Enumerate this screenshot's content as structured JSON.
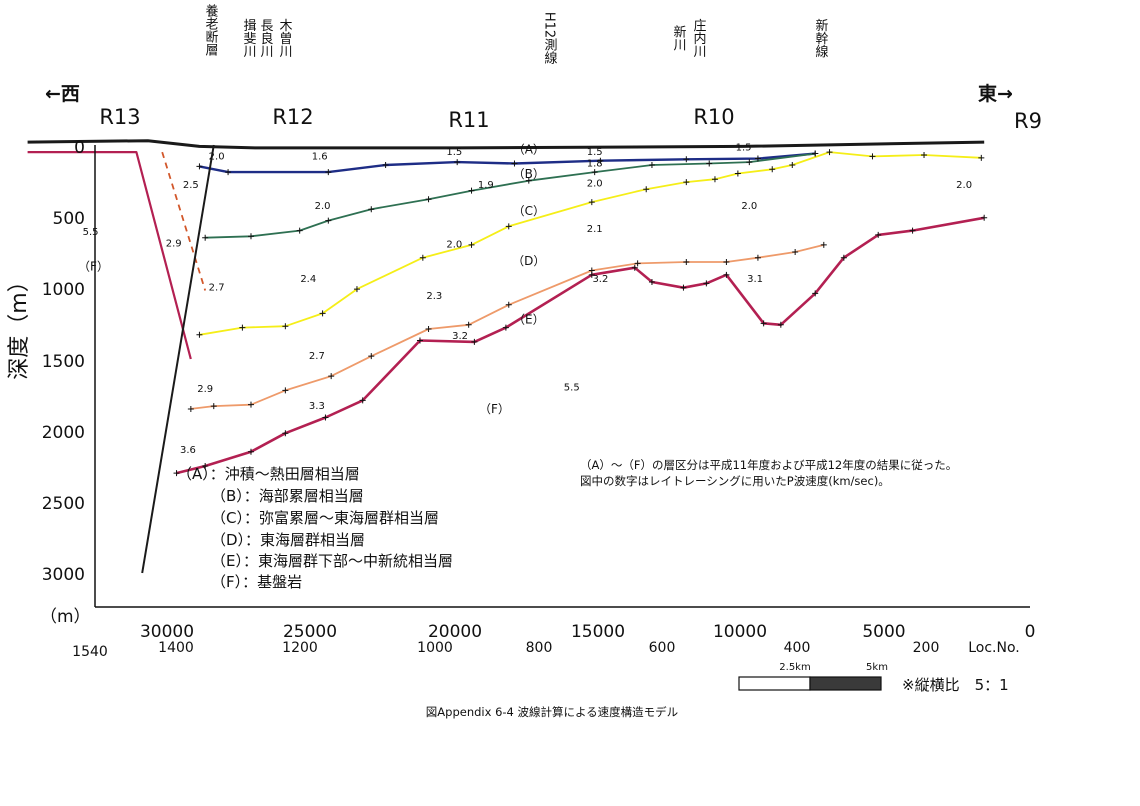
{
  "chart_data": {
    "type": "line",
    "caption": "図Appendix 6-4 波線計算による速度構造モデル",
    "ylabel": "深度（m）",
    "yunit": "（m）",
    "xaxis_ticks": [
      "30000",
      "25000",
      "20000",
      "15000",
      "10000",
      "5000",
      "0"
    ],
    "yaxis_ticks": [
      "0",
      "500",
      "1000",
      "1500",
      "2000",
      "2500",
      "3000"
    ],
    "xlim": [
      33000,
      0
    ],
    "ylim": [
      3200,
      0
    ],
    "loc_label": "Loc.No.",
    "loc_ticks": [
      {
        "label": "1540",
        "x": 31900
      },
      {
        "label": "1400",
        "x": 29800
      },
      {
        "label": "1200",
        "x": 26000
      },
      {
        "label": "1000",
        "x": 20200
      },
      {
        "label": "800",
        "x": 16700
      },
      {
        "label": "600",
        "x": 12800
      },
      {
        "label": "400",
        "x": 8200
      },
      {
        "label": "200",
        "x": 4400
      }
    ],
    "direction_west": "←西",
    "direction_east": "東→",
    "regions": [
      "R13",
      "R12",
      "R11",
      "R10",
      "R9"
    ],
    "top_labels": [
      "養老断層",
      "揖斐川",
      "長良川",
      "木曽川",
      "H12測線",
      "新川",
      "庄内川",
      "新幹線"
    ],
    "series": [
      {
        "name": "(A)",
        "color": "#1e2d86",
        "x": [
          29000,
          28000,
          24500,
          22500,
          20000,
          18000,
          15000,
          12000,
          9500,
          7500
        ],
        "y": [
          150,
          190,
          190,
          140,
          120,
          130,
          110,
          100,
          95,
          60
        ]
      },
      {
        "name": "(B)",
        "color": "#2e7052",
        "x": [
          28800,
          27200,
          25500,
          24500,
          23000,
          21000,
          19500,
          17500,
          15200,
          13200,
          11200,
          9800,
          7500
        ],
        "y": [
          650,
          640,
          600,
          530,
          450,
          380,
          320,
          250,
          190,
          140,
          130,
          120,
          60
        ]
      },
      {
        "name": "(C)",
        "color": "#f5ee18",
        "x": [
          29000,
          27500,
          26000,
          24700,
          23500,
          21200,
          19500,
          18200,
          15300,
          13400,
          12000,
          11000,
          10200,
          9000,
          8300,
          7000,
          5500,
          3700,
          1700
        ],
        "y": [
          1330,
          1280,
          1270,
          1180,
          1010,
          790,
          700,
          570,
          400,
          310,
          260,
          240,
          200,
          170,
          140,
          50,
          80,
          70,
          90
        ]
      },
      {
        "name": "(D)",
        "color": "#ee9a6a",
        "x": [
          29300,
          28500,
          27200,
          26000,
          24400,
          23000,
          21000,
          19600,
          18200,
          15300,
          13700,
          12000,
          10600,
          9500,
          8200,
          7200
        ],
        "y": [
          1850,
          1830,
          1820,
          1720,
          1620,
          1480,
          1290,
          1260,
          1120,
          880,
          830,
          820,
          820,
          790,
          750,
          700
        ]
      },
      {
        "name": "(E)",
        "color": "#b32052",
        "x": [
          29800,
          28800,
          27200,
          26000,
          24600,
          23300,
          21300,
          19400,
          18300,
          15300,
          13800,
          13200,
          12100,
          11300,
          10600,
          9300,
          8700,
          7500,
          6500,
          5300,
          4100,
          1600
        ],
        "y": [
          2300,
          2250,
          2150,
          2020,
          1910,
          1790,
          1370,
          1380,
          1280,
          910,
          860,
          960,
          1000,
          970,
          910,
          1250,
          1260,
          1040,
          790,
          630,
          600,
          510
        ]
      }
    ],
    "series_fault": {
      "name": "fault",
      "color": "#1a1a1a",
      "x": [
        28500,
        31000
      ],
      "y": [
        0,
        3000
      ]
    },
    "series_basin_solid": {
      "color": "#b32052",
      "x": [
        35000,
        31200,
        29300
      ],
      "y": [
        50,
        50,
        1500
      ]
    },
    "series_basin_dashed": {
      "color": "#d2572a",
      "x": [
        30300,
        28800
      ],
      "y": [
        50,
        1020
      ]
    },
    "series_surface": {
      "color": "#1a1a1a",
      "x": [
        35000,
        30800,
        29000,
        27000,
        20000,
        10000,
        1600
      ],
      "y": [
        -20,
        -30,
        10,
        20,
        20,
        10,
        -20
      ]
    },
    "velocity_labels": [
      {
        "text": "2.0",
        "x": 28400,
        "y": 100
      },
      {
        "text": "1.6",
        "x": 24800,
        "y": 100
      },
      {
        "text": "1.5",
        "x": 20100,
        "y": 70
      },
      {
        "text": "1.5",
        "x": 15200,
        "y": 70
      },
      {
        "text": "1.5",
        "x": 10000,
        "y": 40
      },
      {
        "text": "1.8",
        "x": 15200,
        "y": 150
      },
      {
        "text": "2.5",
        "x": 29300,
        "y": 300
      },
      {
        "text": "1.9",
        "x": 19000,
        "y": 300
      },
      {
        "text": "2.0",
        "x": 15200,
        "y": 290
      },
      {
        "text": "2.0",
        "x": 24700,
        "y": 450
      },
      {
        "text": "2.0",
        "x": 9800,
        "y": 450
      },
      {
        "text": "2.0",
        "x": 2300,
        "y": 300
      },
      {
        "text": "5.5",
        "x": 32800,
        "y": 630
      },
      {
        "text": "2.9",
        "x": 29900,
        "y": 710
      },
      {
        "text": "2.0",
        "x": 20100,
        "y": 720
      },
      {
        "text": "2.1",
        "x": 15200,
        "y": 610
      },
      {
        "text": "2.4",
        "x": 25200,
        "y": 960
      },
      {
        "text": "2.7",
        "x": 28400,
        "y": 1020
      },
      {
        "text": "2.3",
        "x": 20800,
        "y": 1080
      },
      {
        "text": "3.2",
        "x": 15000,
        "y": 960
      },
      {
        "text": "3.1",
        "x": 9600,
        "y": 960
      },
      {
        "text": "3.2",
        "x": 19900,
        "y": 1360
      },
      {
        "text": "2.7",
        "x": 24900,
        "y": 1500
      },
      {
        "text": "2.9",
        "x": 28800,
        "y": 1730
      },
      {
        "text": "5.5",
        "x": 16000,
        "y": 1720
      },
      {
        "text": "3.3",
        "x": 24900,
        "y": 1850
      },
      {
        "text": "3.6",
        "x": 29400,
        "y": 2160
      }
    ],
    "layer_letters": [
      {
        "text": "（A）",
        "x": 17500,
        "y": 60
      },
      {
        "text": "（B）",
        "x": 17500,
        "y": 230
      },
      {
        "text": "（C）",
        "x": 17500,
        "y": 490
      },
      {
        "text": "（D）",
        "x": 17500,
        "y": 840
      },
      {
        "text": "（E）",
        "x": 17500,
        "y": 1250
      },
      {
        "text": "（F）",
        "x": 32700,
        "y": 880
      },
      {
        "text": "（F）",
        "x": 18700,
        "y": 1880
      }
    ],
    "legend": [
      "（A）：沖積～熱田層相当層",
      "（B）：海部累層相当層",
      "（C）：弥富累層～東海層群相当層",
      "（D）：東海層群相当層",
      "（E）：東海層群下部～中新統相当層",
      "（F）：基盤岩"
    ],
    "notes": [
      "（A）～（F）の層区分は平成11年度および平成12年度の結果に従った。",
      "図中の数字はレイトレーシングに用いたP波速度(km/sec)。"
    ],
    "scale_bar": {
      "label_mid": "2.5km",
      "label_end": "5km"
    },
    "aspect_note": "※縦横比　5：1"
  }
}
